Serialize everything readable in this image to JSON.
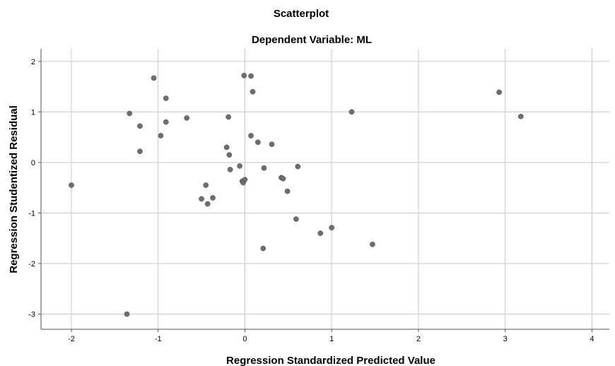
{
  "chart_data": {
    "type": "scatter",
    "title": "Scatterplot",
    "subtitle": "Dependent Variable: ML",
    "xlabel": "Regression Standardized Predicted Value",
    "ylabel": "Regression Studentized Residual",
    "xlim": [
      -2.35,
      4.2
    ],
    "ylim": [
      -3.3,
      2.25
    ],
    "xticks": [
      -2,
      -1,
      0,
      1,
      2,
      3,
      4
    ],
    "yticks": [
      -3,
      -2,
      -1,
      0,
      1,
      2
    ],
    "grid": true,
    "legend": "none",
    "marker_color": "#6e6e6e",
    "points": [
      {
        "x": -2.0,
        "y": -0.45
      },
      {
        "x": -1.36,
        "y": -3.0
      },
      {
        "x": -1.33,
        "y": 0.97
      },
      {
        "x": -1.21,
        "y": 0.72
      },
      {
        "x": -1.21,
        "y": 0.22
      },
      {
        "x": -1.05,
        "y": 1.67
      },
      {
        "x": -0.97,
        "y": 0.53
      },
      {
        "x": -0.91,
        "y": 1.27
      },
      {
        "x": -0.91,
        "y": 0.8
      },
      {
        "x": -0.67,
        "y": 0.88
      },
      {
        "x": -0.5,
        "y": -0.72
      },
      {
        "x": -0.45,
        "y": -0.45
      },
      {
        "x": -0.43,
        "y": -0.82
      },
      {
        "x": -0.37,
        "y": -0.7
      },
      {
        "x": -0.21,
        "y": 0.3
      },
      {
        "x": -0.19,
        "y": 0.9
      },
      {
        "x": -0.18,
        "y": 0.15
      },
      {
        "x": -0.17,
        "y": -0.14
      },
      {
        "x": -0.06,
        "y": -0.07
      },
      {
        "x": -0.03,
        "y": -0.37
      },
      {
        "x": -0.02,
        "y": -0.4
      },
      {
        "x": 0.0,
        "y": -0.34
      },
      {
        "x": -0.01,
        "y": 1.72
      },
      {
        "x": 0.07,
        "y": 1.71
      },
      {
        "x": 0.09,
        "y": 1.4
      },
      {
        "x": 0.07,
        "y": 0.53
      },
      {
        "x": 0.15,
        "y": 0.4
      },
      {
        "x": 0.21,
        "y": -1.7
      },
      {
        "x": 0.22,
        "y": -0.11
      },
      {
        "x": 0.31,
        "y": 0.36
      },
      {
        "x": 0.42,
        "y": -0.3
      },
      {
        "x": 0.44,
        "y": -0.32
      },
      {
        "x": 0.49,
        "y": -0.57
      },
      {
        "x": 0.59,
        "y": -1.12
      },
      {
        "x": 0.61,
        "y": -0.08
      },
      {
        "x": 0.87,
        "y": -1.4
      },
      {
        "x": 1.0,
        "y": -1.29
      },
      {
        "x": 1.23,
        "y": 1.0
      },
      {
        "x": 1.47,
        "y": -1.62
      },
      {
        "x": 2.93,
        "y": 1.39
      },
      {
        "x": 3.18,
        "y": 0.91
      }
    ]
  }
}
